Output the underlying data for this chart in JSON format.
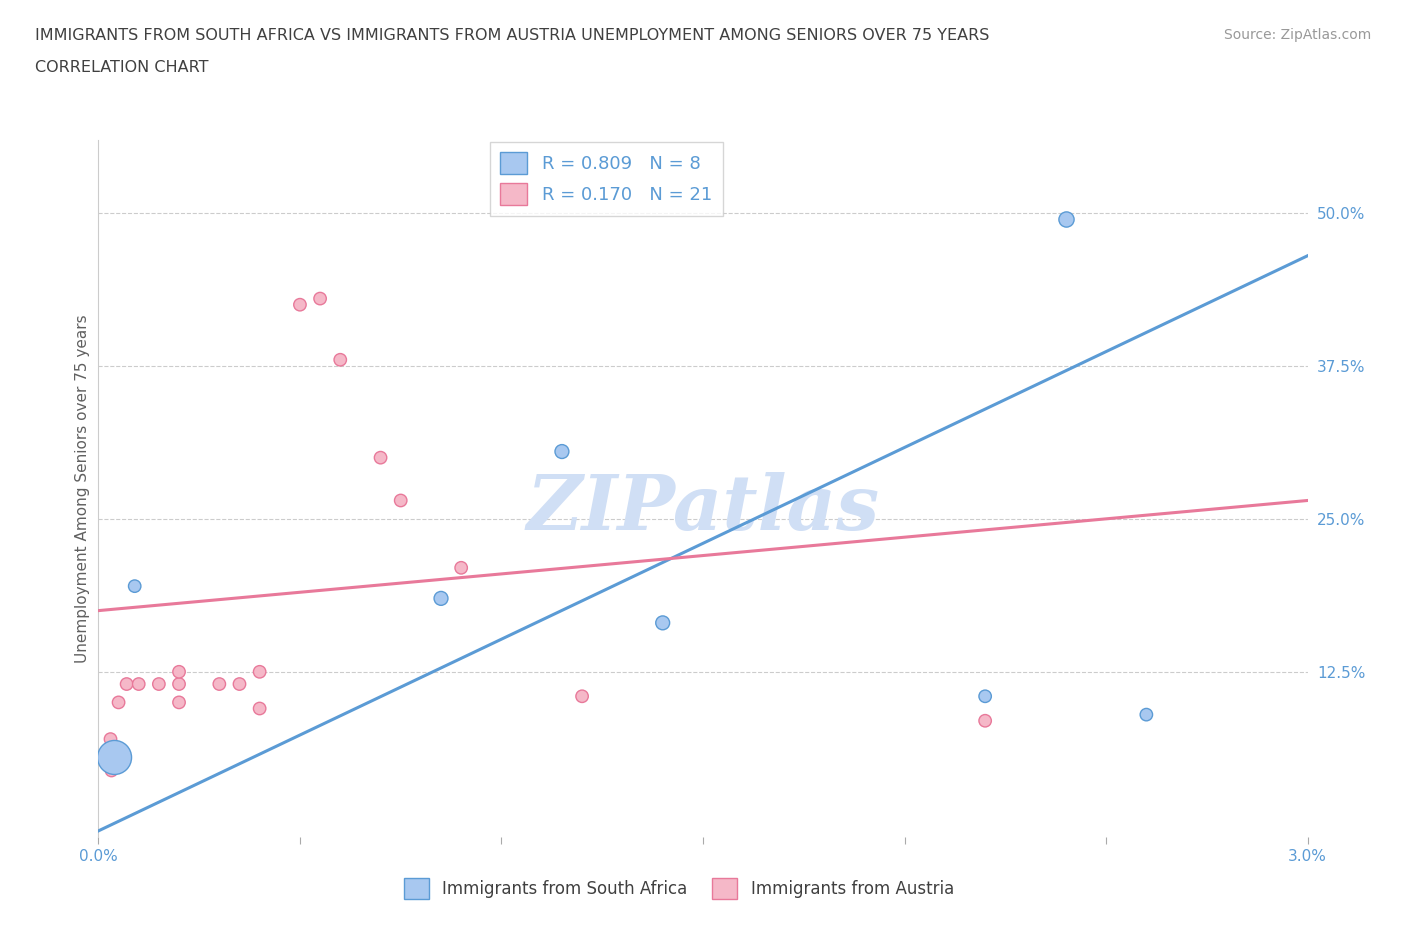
{
  "title_line1": "IMMIGRANTS FROM SOUTH AFRICA VS IMMIGRANTS FROM AUSTRIA UNEMPLOYMENT AMONG SENIORS OVER 75 YEARS",
  "title_line2": "CORRELATION CHART",
  "source_text": "Source: ZipAtlas.com",
  "ylabel": "Unemployment Among Seniors over 75 years",
  "watermark": "ZIPatlas",
  "legend_label1": "Immigrants from South Africa",
  "legend_label2": "Immigrants from Austria",
  "R1": 0.809,
  "N1": 8,
  "R2": 0.17,
  "N2": 21,
  "xlim": [
    0,
    0.03
  ],
  "ylim": [
    -0.01,
    0.56
  ],
  "xticks": [
    0.0,
    0.005,
    0.01,
    0.015,
    0.02,
    0.025,
    0.03
  ],
  "xtick_labels": [
    "0.0%",
    "",
    "",
    "",
    "",
    "",
    "3.0%"
  ],
  "right_yticks": [
    0.0,
    0.125,
    0.25,
    0.375,
    0.5
  ],
  "right_ytick_labels": [
    "",
    "12.5%",
    "25.0%",
    "37.5%",
    "50.0%"
  ],
  "color_blue": "#A8C8F0",
  "color_pink": "#F5B8C8",
  "color_blue_line": "#5B9BD5",
  "color_pink_line": "#E8799A",
  "color_title": "#404040",
  "color_source": "#999999",
  "color_watermark": "#D0DFF5",
  "color_axis_labels": "#5B9BD5",
  "blue_scatter_x": [
    0.0004,
    0.0009,
    0.0085,
    0.0115,
    0.014,
    0.022,
    0.026
  ],
  "blue_scatter_y": [
    0.055,
    0.195,
    0.185,
    0.305,
    0.165,
    0.105,
    0.09
  ],
  "blue_scatter_size": [
    600,
    80,
    100,
    100,
    100,
    80,
    80
  ],
  "blue_large_x": [
    0.024
  ],
  "blue_large_y": [
    0.495
  ],
  "blue_large_size": [
    120
  ],
  "pink_scatter_x": [
    0.0003,
    0.0005,
    0.0007,
    0.001,
    0.0015,
    0.002,
    0.002,
    0.002,
    0.003,
    0.0035,
    0.004,
    0.004,
    0.005,
    0.0055,
    0.006,
    0.007,
    0.0075,
    0.009,
    0.012,
    0.022
  ],
  "pink_scatter_y": [
    0.07,
    0.1,
    0.115,
    0.115,
    0.115,
    0.1,
    0.115,
    0.125,
    0.115,
    0.115,
    0.125,
    0.095,
    0.425,
    0.43,
    0.38,
    0.3,
    0.265,
    0.21,
    0.105,
    0.085
  ],
  "pink_scatter_size": [
    80,
    80,
    80,
    80,
    80,
    80,
    80,
    80,
    80,
    80,
    80,
    80,
    80,
    80,
    80,
    80,
    80,
    80,
    80,
    80
  ],
  "pink_large_x": [
    0.0003
  ],
  "pink_large_y": [
    0.045
  ],
  "pink_large_size": [
    80
  ],
  "blue_line_x": [
    0.0,
    0.03
  ],
  "blue_line_y": [
    -0.005,
    0.465
  ],
  "pink_line_x": [
    0.0,
    0.03
  ],
  "pink_line_y": [
    0.175,
    0.265
  ]
}
